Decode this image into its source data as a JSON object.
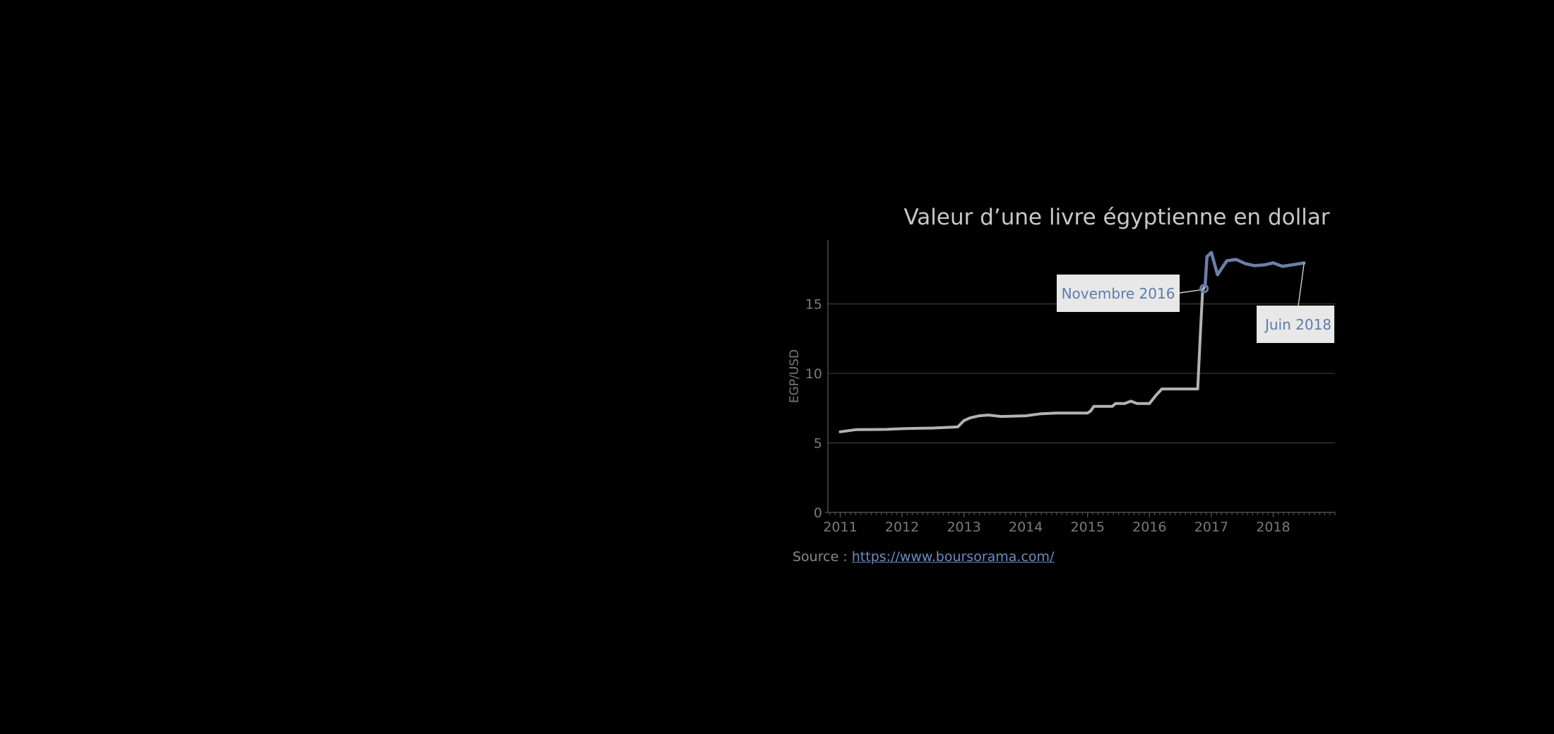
{
  "chart_data": {
    "type": "line",
    "title": "Valeur d’une livre égyptienne en dollar",
    "ylabel": "EGP/USD",
    "xlabel": "",
    "xlim": [
      2010.8,
      2019.0
    ],
    "ylim": [
      0,
      19.6
    ],
    "x_ticks": [
      "2011",
      "2012",
      "2013",
      "2014",
      "2015",
      "2016",
      "2017",
      "2018"
    ],
    "y_ticks": [
      "0",
      "5",
      "10",
      "15"
    ],
    "grid": "horizontal",
    "colors": {
      "before": "#b3b3b3",
      "after": "#6b7fa8",
      "axis": "#5a5a5a",
      "grid": "#3c3c3c",
      "annotation_bg": "#e8e8e8"
    },
    "series": [
      {
        "segment": "before",
        "x": [
          2011.0,
          2011.25,
          2011.5,
          2011.75,
          2012.0,
          2012.25,
          2012.5,
          2012.75,
          2012.9,
          2013.0,
          2013.1,
          2013.25,
          2013.4,
          2013.6,
          2013.75,
          2014.0,
          2014.25,
          2014.5,
          2014.75,
          2015.0,
          2015.05,
          2015.1,
          2015.2,
          2015.4,
          2015.45,
          2015.6,
          2015.7,
          2015.8,
          2016.0,
          2016.1,
          2016.2,
          2016.4,
          2016.6,
          2016.78,
          2016.83,
          2016.86,
          2016.9
        ],
        "y": [
          5.8,
          5.95,
          5.96,
          5.97,
          6.02,
          6.05,
          6.07,
          6.12,
          6.15,
          6.6,
          6.8,
          6.95,
          7.0,
          6.9,
          6.92,
          6.95,
          7.1,
          7.15,
          7.15,
          7.15,
          7.3,
          7.63,
          7.63,
          7.63,
          7.83,
          7.83,
          8.0,
          7.83,
          7.83,
          8.4,
          8.88,
          8.88,
          8.88,
          8.88,
          13.5,
          16.0,
          16.3
        ]
      },
      {
        "segment": "after",
        "x": [
          2016.9,
          2016.93,
          2017.0,
          2017.1,
          2017.25,
          2017.4,
          2017.55,
          2017.7,
          2017.85,
          2018.0,
          2018.15,
          2018.3,
          2018.5
        ],
        "y": [
          16.3,
          18.4,
          18.7,
          17.1,
          18.1,
          18.2,
          17.9,
          17.75,
          17.8,
          17.95,
          17.7,
          17.8,
          17.95
        ]
      }
    ],
    "annotations": [
      {
        "label": "Novembre 2016",
        "x": 2016.86,
        "y": 16.0
      },
      {
        "label": "Juin 2018",
        "x": 2018.5,
        "y": 17.95
      }
    ],
    "source": {
      "prefix": "Source :",
      "link_text": "https://www.boursorama.com/"
    }
  }
}
